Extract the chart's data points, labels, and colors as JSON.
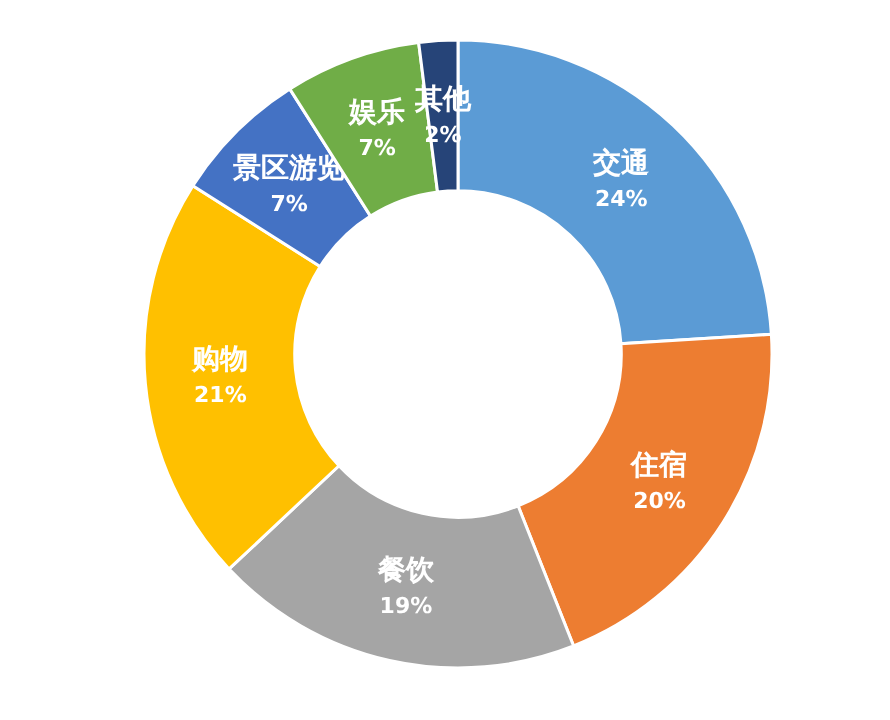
{
  "chart_data": {
    "type": "donut",
    "categories": [
      "交通",
      "住宿",
      "餐饮",
      "购物",
      "景区游览",
      "娱乐",
      "其他"
    ],
    "values": [
      24,
      20,
      19,
      21,
      7,
      7,
      2
    ],
    "colors": [
      "#5b9bd5",
      "#ed7d31",
      "#a5a5a5",
      "#ffc000",
      "#4472c4",
      "#70ad47",
      "#264478"
    ],
    "value_labels": [
      "24%",
      "20%",
      "19%",
      "21%",
      "7%",
      "7%",
      "2%"
    ]
  }
}
